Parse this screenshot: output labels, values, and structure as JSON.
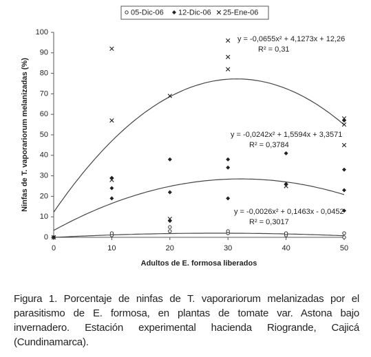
{
  "chart_data": {
    "type": "scatter",
    "x_label": "Adultos de E. formosa liberados",
    "y_label": "Ninfas de T. vaporariorum melanizadas (%)",
    "xlim": [
      0,
      50
    ],
    "xticks": [
      0,
      10,
      20,
      30,
      40,
      50
    ],
    "ylim": [
      0,
      100
    ],
    "yticks": [
      0,
      10,
      20,
      30,
      40,
      50,
      60,
      70,
      80,
      90,
      100
    ],
    "grid": false,
    "legend": "top",
    "series": [
      {
        "name": "05-Dic-06",
        "marker": "circle",
        "color": "#333333",
        "x": [
          0,
          10,
          10,
          20,
          20,
          30,
          30,
          40,
          40,
          50,
          50
        ],
        "values": [
          0,
          1,
          2,
          3,
          5,
          2,
          3,
          1,
          2,
          0,
          2
        ]
      },
      {
        "name": "12-Dic-06",
        "marker": "diamond",
        "color": "#222222",
        "x": [
          0,
          10,
          10,
          10,
          20,
          20,
          20,
          30,
          30,
          30,
          40,
          40,
          50,
          50,
          50,
          50
        ],
        "values": [
          0,
          29,
          24,
          19,
          38,
          22,
          8,
          38,
          34,
          19,
          41,
          26,
          33,
          23,
          13,
          57
        ]
      },
      {
        "name": "25-Ene-06",
        "marker": "cross",
        "color": "#222222",
        "x": [
          0,
          10,
          10,
          10,
          20,
          20,
          30,
          30,
          30,
          40,
          50,
          50,
          50
        ],
        "values": [
          0,
          92,
          57,
          28,
          69,
          9,
          96,
          88,
          82,
          25,
          58,
          55,
          45
        ]
      }
    ],
    "trendlines": [
      {
        "equation": "y = -0,0655x² + 4,1273x + 12,26",
        "r2": "R² = 0,31",
        "coefficients": [
          -0.0655,
          4.1273,
          12.26
        ]
      },
      {
        "equation": "y = -0,0242x² + 1,5594x + 3,3571",
        "r2": "R² = 0,3784",
        "coefficients": [
          -0.0242,
          1.5594,
          3.3571
        ]
      },
      {
        "equation": "y = -0,0026x² + 0,1463x - 0,0452",
        "r2": "R² = 0,3017",
        "coefficients": [
          -0.0026,
          0.1463,
          -0.0452
        ]
      }
    ]
  },
  "caption": "Figura 1. Porcentaje de ninfas de T. vaporariorum melanizadas por el parasitismo de E. formosa, en plantas de tomate var. Astona bajo invernadero. Estación experimental hacienda Riogrande, Cajicá (Cundinamarca)."
}
